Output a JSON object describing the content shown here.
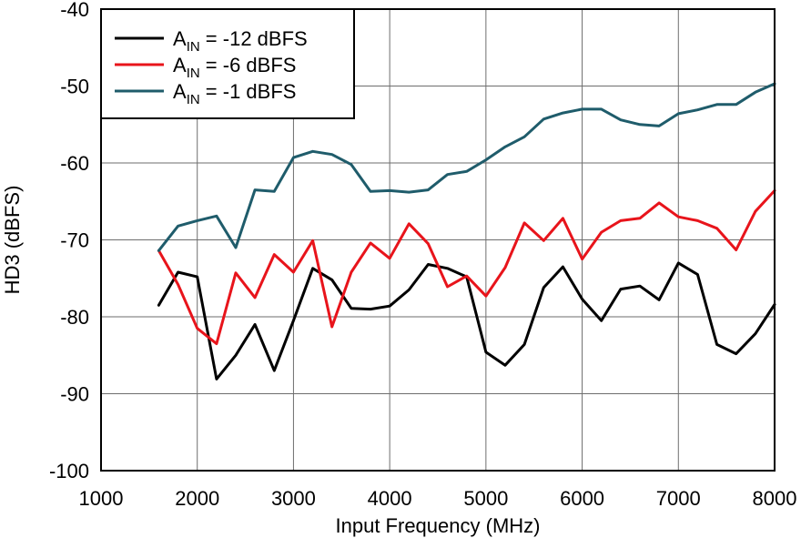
{
  "chart_data": {
    "type": "line",
    "xlabel": "Input Frequency (MHz)",
    "ylabel": "HD3 (dBFS)",
    "xlim": [
      1000,
      8000
    ],
    "ylim": [
      -100,
      -40
    ],
    "xticks": [
      1000,
      2000,
      3000,
      4000,
      5000,
      6000,
      7000,
      8000
    ],
    "yticks": [
      -100,
      -90,
      -80,
      -70,
      -60,
      -50,
      -40
    ],
    "grid": true,
    "legend_position": "top-left",
    "x": [
      1600,
      1800,
      2000,
      2200,
      2400,
      2600,
      2800,
      3000,
      3200,
      3400,
      3600,
      3800,
      4000,
      4200,
      4400,
      4600,
      4800,
      5000,
      5200,
      5400,
      5600,
      5800,
      6000,
      6200,
      6400,
      6600,
      6800,
      7000,
      7200,
      7400,
      7600,
      7800,
      8000
    ],
    "series": [
      {
        "name_main": "A",
        "name_sub": "IN",
        "name_rest": " = -12 dBFS",
        "color": "#000000",
        "values": [
          -78.5,
          -74.2,
          -74.8,
          -88.1,
          -85.0,
          -81.0,
          -87.0,
          -80.5,
          -73.7,
          -75.2,
          -78.9,
          -79.0,
          -78.6,
          -76.5,
          -73.2,
          -73.7,
          -74.8,
          -84.6,
          -86.3,
          -83.6,
          -76.2,
          -73.5,
          -77.7,
          -80.5,
          -76.4,
          -76.0,
          -77.8,
          -73.0,
          -74.5,
          -83.6,
          -84.8,
          -82.2,
          -78.4
        ]
      },
      {
        "name_main": "A",
        "name_sub": "IN",
        "name_rest": " = -6 dBFS",
        "color": "#e8141b",
        "values": [
          -71.4,
          -75.8,
          -81.5,
          -83.5,
          -74.3,
          -77.5,
          -71.9,
          -74.2,
          -70.1,
          -81.3,
          -74.2,
          -70.4,
          -72.4,
          -67.9,
          -70.5,
          -76.1,
          -74.7,
          -77.3,
          -73.6,
          -67.8,
          -70.1,
          -67.2,
          -72.5,
          -69.0,
          -67.5,
          -67.2,
          -65.2,
          -67.0,
          -67.5,
          -68.5,
          -71.3,
          -66.3,
          -63.6
        ]
      },
      {
        "name_main": "A",
        "name_sub": "IN",
        "name_rest": " = -1 dBFS",
        "color": "#1f5c6b",
        "values": [
          -71.4,
          -68.2,
          -67.5,
          -66.9,
          -71.0,
          -63.5,
          -63.7,
          -59.3,
          -58.5,
          -58.9,
          -60.2,
          -63.7,
          -63.6,
          -63.8,
          -63.5,
          -61.5,
          -61.1,
          -59.6,
          -57.9,
          -56.6,
          -54.3,
          -53.5,
          -53.0,
          -53.0,
          -54.4,
          -55.0,
          -55.2,
          -53.6,
          -53.1,
          -52.4,
          -52.4,
          -50.8,
          -49.7
        ]
      }
    ]
  }
}
